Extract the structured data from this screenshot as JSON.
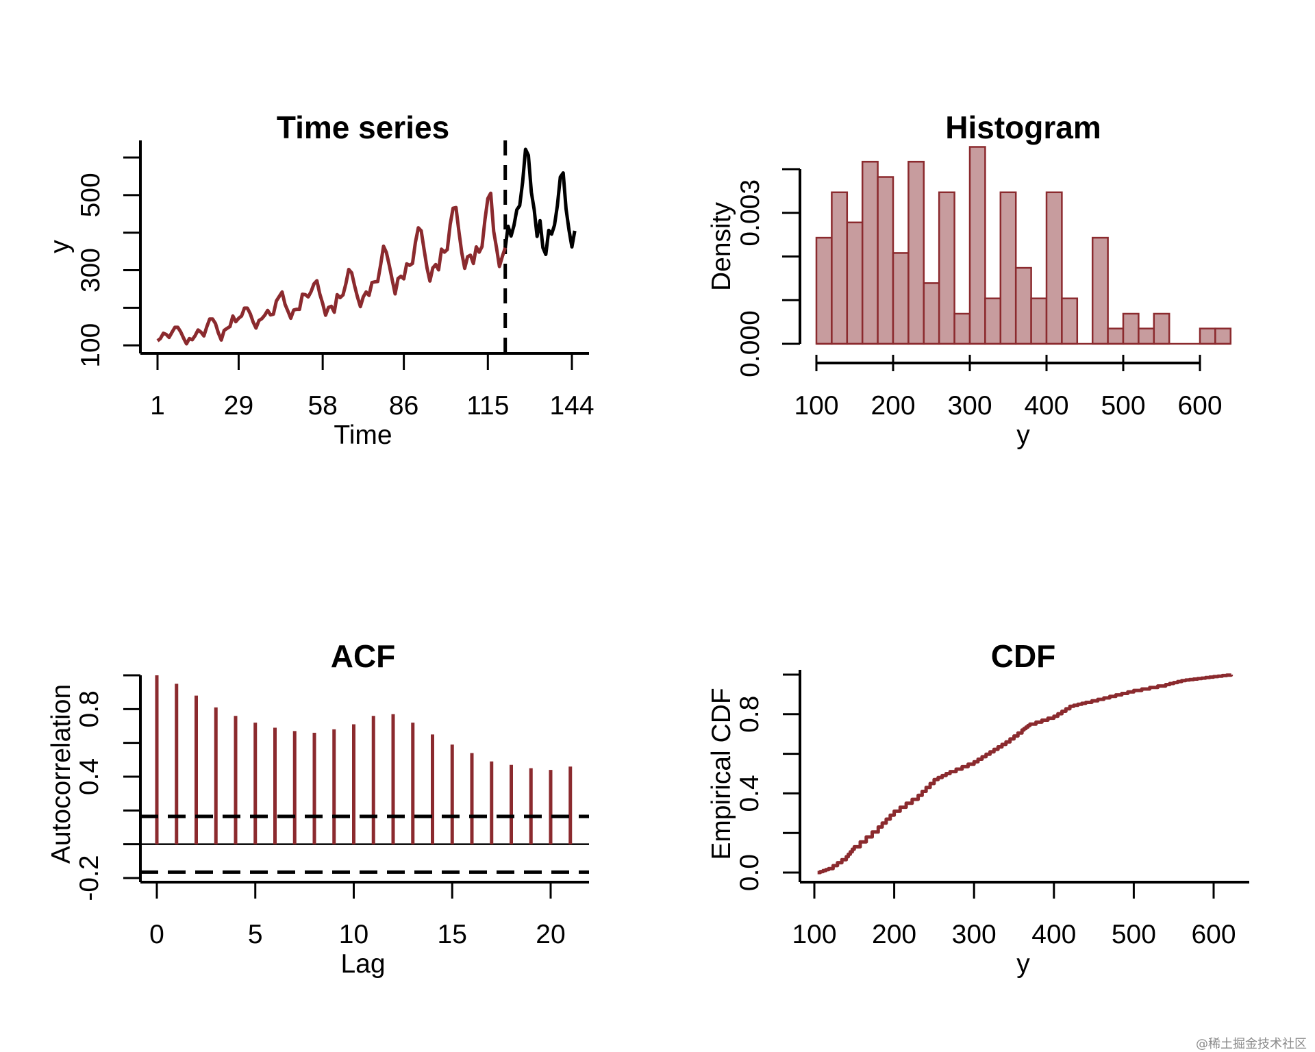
{
  "watermark": "@稀土掘金技术社区",
  "colors": {
    "series": "#8b2a2e",
    "forecast": "#000000",
    "bar_fill": "#c79c9e",
    "bar_edge": "#8b2a2e"
  },
  "chart_data": [
    {
      "type": "line",
      "title": "Time series",
      "xlabel": "Time",
      "ylabel": "y",
      "x_ticks": [
        "1",
        "29",
        "58",
        "86",
        "115",
        "144"
      ],
      "y_ticks": [
        "100",
        "300",
        "500"
      ],
      "xlim": [
        1,
        144
      ],
      "ylim": [
        104,
        622
      ],
      "split_at": 121,
      "series": [
        {
          "values": [
            112,
            118,
            132,
            129,
            121,
            135,
            148,
            148,
            136,
            119,
            104,
            118,
            115,
            126,
            141,
            135,
            125,
            149,
            170,
            170,
            158,
            133,
            114,
            140,
            145,
            150,
            178,
            163,
            172,
            178,
            199,
            199,
            184,
            162,
            146,
            166,
            171,
            180,
            193,
            181,
            183,
            218,
            230,
            242,
            209,
            191,
            172,
            194,
            196,
            196,
            236,
            235,
            229,
            243,
            264,
            272,
            237,
            211,
            180,
            201,
            204,
            188,
            235,
            227,
            234,
            264,
            302,
            293,
            259,
            229,
            203,
            229,
            242,
            233,
            267,
            269,
            270,
            315,
            364,
            347,
            312,
            274,
            237,
            278,
            284,
            277,
            317,
            313,
            318,
            374,
            413,
            405,
            355,
            306,
            271,
            306,
            315,
            301,
            356,
            348,
            355,
            422,
            465,
            467,
            404,
            347,
            305,
            336,
            340,
            318,
            362,
            348,
            363,
            435,
            491,
            505,
            404,
            359,
            310,
            337,
            360
          ]
        },
        {
          "start": 121,
          "values": [
            360,
            417,
            391,
            419,
            461,
            472,
            535,
            622,
            606,
            508,
            461,
            390,
            432,
            360,
            342,
            406,
            396,
            420,
            472,
            548,
            559,
            463,
            407,
            362,
            405
          ]
        }
      ]
    },
    {
      "type": "bar",
      "title": "Histogram",
      "xlabel": "y",
      "ylabel": "Density",
      "x_ticks": [
        "100",
        "200",
        "300",
        "400",
        "500",
        "600"
      ],
      "y_ticks": [
        "0.000",
        "0.003"
      ],
      "xlim": [
        100,
        640
      ],
      "ylim": [
        0,
        0.004
      ],
      "bin_width": 20,
      "bins_start": 100,
      "densities": [
        0.00243,
        0.00347,
        0.00278,
        0.00417,
        0.00382,
        0.00208,
        0.00417,
        0.00139,
        0.00347,
        0.00069,
        0.00451,
        0.00104,
        0.00347,
        0.00174,
        0.00104,
        0.00347,
        0.00104,
        0,
        0.00243,
        0.00035,
        0.00069,
        0.00035,
        0.00069,
        0,
        0,
        0.00035,
        0.00035
      ]
    },
    {
      "type": "bar",
      "title": "ACF",
      "xlabel": "Lag",
      "ylabel": "Autocorrelation",
      "x_ticks": [
        "0",
        "5",
        "10",
        "15",
        "20"
      ],
      "y_ticks": [
        "-0.2",
        "0.4",
        "0.8"
      ],
      "xlim": [
        0,
        21
      ],
      "ylim": [
        -0.2,
        1.0
      ],
      "lags": [
        0,
        1,
        2,
        3,
        4,
        5,
        6,
        7,
        8,
        9,
        10,
        11,
        12,
        13,
        14,
        15,
        16,
        17,
        18,
        19,
        20,
        21
      ],
      "values": [
        1.0,
        0.95,
        0.88,
        0.81,
        0.76,
        0.72,
        0.69,
        0.67,
        0.66,
        0.68,
        0.71,
        0.76,
        0.77,
        0.72,
        0.65,
        0.59,
        0.54,
        0.49,
        0.47,
        0.45,
        0.44,
        0.46
      ],
      "confidence_band": [
        0.165,
        -0.165
      ]
    },
    {
      "type": "line",
      "title": "CDF",
      "xlabel": "y",
      "ylabel": "Empirical CDF",
      "x_ticks": [
        "100",
        "200",
        "300",
        "400",
        "500",
        "600"
      ],
      "y_ticks": [
        "0.0",
        "0.4",
        "0.8"
      ],
      "xlim": [
        104,
        622
      ],
      "ylim": [
        0,
        1
      ],
      "x": [
        104,
        118,
        140,
        150,
        180,
        200,
        230,
        250,
        270,
        300,
        320,
        340,
        360,
        370,
        400,
        420,
        440,
        470,
        500,
        540,
        560,
        580,
        600,
        622
      ],
      "y": [
        0.0,
        0.02,
        0.08,
        0.13,
        0.23,
        0.31,
        0.39,
        0.47,
        0.51,
        0.56,
        0.61,
        0.66,
        0.72,
        0.75,
        0.79,
        0.84,
        0.86,
        0.89,
        0.92,
        0.95,
        0.97,
        0.98,
        0.99,
        1.0
      ]
    }
  ]
}
